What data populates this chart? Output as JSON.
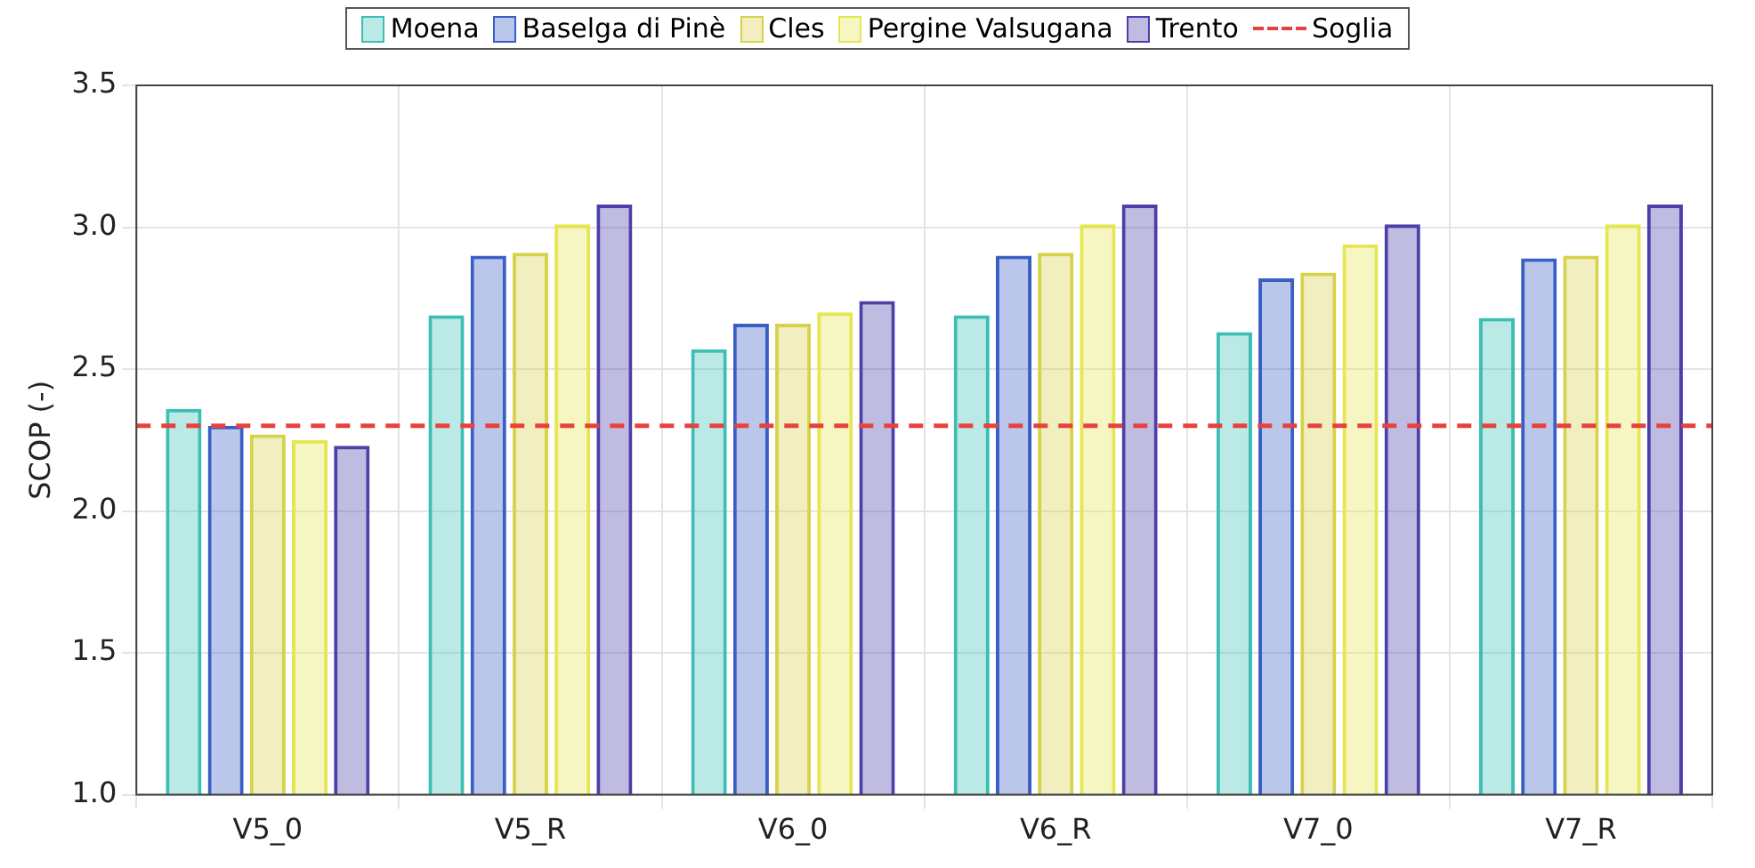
{
  "chart_data": {
    "type": "bar",
    "ylabel": "SCOP (-)",
    "categories": [
      "V5_0",
      "V5_R",
      "V6_0",
      "V6_R",
      "V7_0",
      "V7_R"
    ],
    "series": [
      {
        "name": "Moena",
        "color": "#3bbfb5",
        "values": [
          2.36,
          2.69,
          2.57,
          2.69,
          2.63,
          2.68
        ]
      },
      {
        "name": "Baselga di Pinè",
        "color": "#3a5fc4",
        "values": [
          2.3,
          2.9,
          2.66,
          2.9,
          2.82,
          2.89
        ]
      },
      {
        "name": "Cles",
        "color": "#d6d24a",
        "values": [
          2.27,
          2.91,
          2.66,
          2.91,
          2.84,
          2.9
        ]
      },
      {
        "name": "Pergine Valsugana",
        "color": "#e6e650",
        "values": [
          2.25,
          3.01,
          2.7,
          3.01,
          2.94,
          3.01
        ]
      },
      {
        "name": "Trento",
        "color": "#4b3fa8",
        "values": [
          2.23,
          3.08,
          2.74,
          3.08,
          3.01,
          3.08
        ]
      }
    ],
    "ref_lines": [
      {
        "axis": "y",
        "value": 2.3,
        "label": "Soglia",
        "color": "#e8413c",
        "line_style": "dashed"
      }
    ],
    "ylim": [
      1.0,
      3.5
    ],
    "yticks": [
      {
        "value": 1.0,
        "label": "1.0"
      },
      {
        "value": 1.5,
        "label": "1.5"
      },
      {
        "value": 2.0,
        "label": "2.0"
      },
      {
        "value": 2.5,
        "label": "2.5"
      },
      {
        "value": 3.0,
        "label": "3.0"
      },
      {
        "value": 3.5,
        "label": "3.5"
      }
    ],
    "grid": true,
    "legend": "top"
  }
}
